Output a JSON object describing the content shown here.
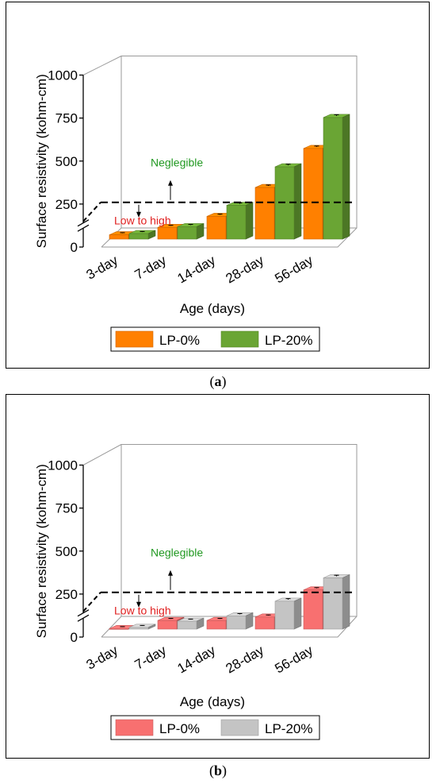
{
  "panels": [
    {
      "caption_letter": "a",
      "chart_data": {
        "type": "bar",
        "categories": [
          "3-day",
          "7-day",
          "14-day",
          "28-day",
          "56-day"
        ],
        "series": [
          {
            "name": "LP-0%",
            "values": [
              25,
              68,
              132,
              300,
              527
            ],
            "errors": [
              3,
              3,
              4,
              5,
              5
            ]
          },
          {
            "name": "LP-20%",
            "values": [
              32,
              72,
              196,
              420,
              707
            ],
            "errors": [
              3,
              4,
              5,
              6,
              7
            ]
          }
        ],
        "colors": {
          "series0": "#ff8000",
          "series1": "#6aa534"
        },
        "xlabel": "Age (days)",
        "ylabel": "Surface resistivity (kohm-cm)",
        "yticks": [
          "0",
          "250",
          "500",
          "750",
          "1000"
        ],
        "ylim": [
          0,
          1000
        ],
        "threshold": 260,
        "annotations": {
          "above": "Neglegible",
          "below": "Low to high"
        },
        "annotation_colors": {
          "above": "#229922",
          "below": "#e02020"
        },
        "legend_position": "bottom"
      }
    },
    {
      "caption_letter": "b",
      "chart_data": {
        "type": "bar",
        "categories": [
          "3-day",
          "7-day",
          "14-day",
          "28-day",
          "56-day"
        ],
        "series": [
          {
            "name": "LP-0%",
            "values": [
              3,
              50,
              50,
              70,
              228
            ],
            "errors": [
              2,
              3,
              3,
              3,
              4
            ]
          },
          {
            "name": "LP-20%",
            "values": [
              10,
              46,
              77,
              162,
              298
            ],
            "errors": [
              2,
              3,
              4,
              6,
              6
            ]
          }
        ],
        "colors": {
          "series0": "#f87070",
          "series1": "#c4c4c4"
        },
        "xlabel": "Age (days)",
        "ylabel": "Surface resistivity (kohm-cm)",
        "yticks": [
          "0",
          "250",
          "500",
          "750",
          "1000"
        ],
        "ylim": [
          0,
          1000
        ],
        "threshold": 260,
        "annotations": {
          "above": "Neglegible",
          "below": "Low to high"
        },
        "annotation_colors": {
          "above": "#229922",
          "below": "#e02020"
        },
        "legend_position": "bottom"
      }
    }
  ]
}
